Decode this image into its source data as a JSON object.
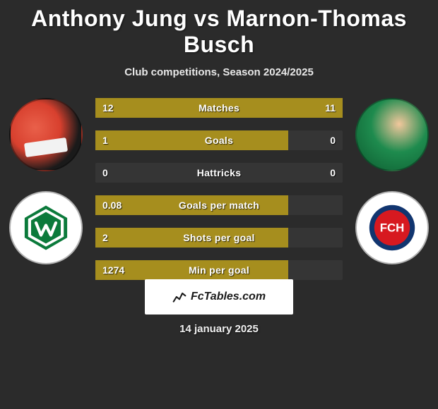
{
  "title_color": "#ffffff",
  "title": "Anthony Jung vs Marnon-Thomas Busch",
  "subtitle": "Club competitions, Season 2024/2025",
  "date": "14 january 2025",
  "branding": "FcTables.com",
  "colors": {
    "background": "#2b2b2b",
    "bar_fill": "#a68e1e",
    "bar_empty": "rgba(255,255,255,0.05)",
    "text": "#ffffff"
  },
  "players": {
    "left": {
      "name": "Anthony Jung",
      "club": "Werder Bremen"
    },
    "right": {
      "name": "Marnon-Thomas Busch",
      "club": "1. FC Heidenheim"
    }
  },
  "bars": [
    {
      "label": "Matches",
      "left_val": "12",
      "right_val": "11",
      "left_pct": 52,
      "right_pct": 48
    },
    {
      "label": "Goals",
      "left_val": "1",
      "right_val": "0",
      "left_pct": 78,
      "right_pct": 0
    },
    {
      "label": "Hattricks",
      "left_val": "0",
      "right_val": "0",
      "left_pct": 0,
      "right_pct": 0
    },
    {
      "label": "Goals per match",
      "left_val": "0.08",
      "right_val": "",
      "left_pct": 78,
      "right_pct": 0
    },
    {
      "label": "Shots per goal",
      "left_val": "2",
      "right_val": "",
      "left_pct": 78,
      "right_pct": 0
    },
    {
      "label": "Min per goal",
      "left_val": "1274",
      "right_val": "",
      "left_pct": 78,
      "right_pct": 0
    }
  ],
  "bar_style": {
    "height": 28,
    "gap": 18,
    "fontsize": 14,
    "fill_color": "#a68e1e"
  }
}
